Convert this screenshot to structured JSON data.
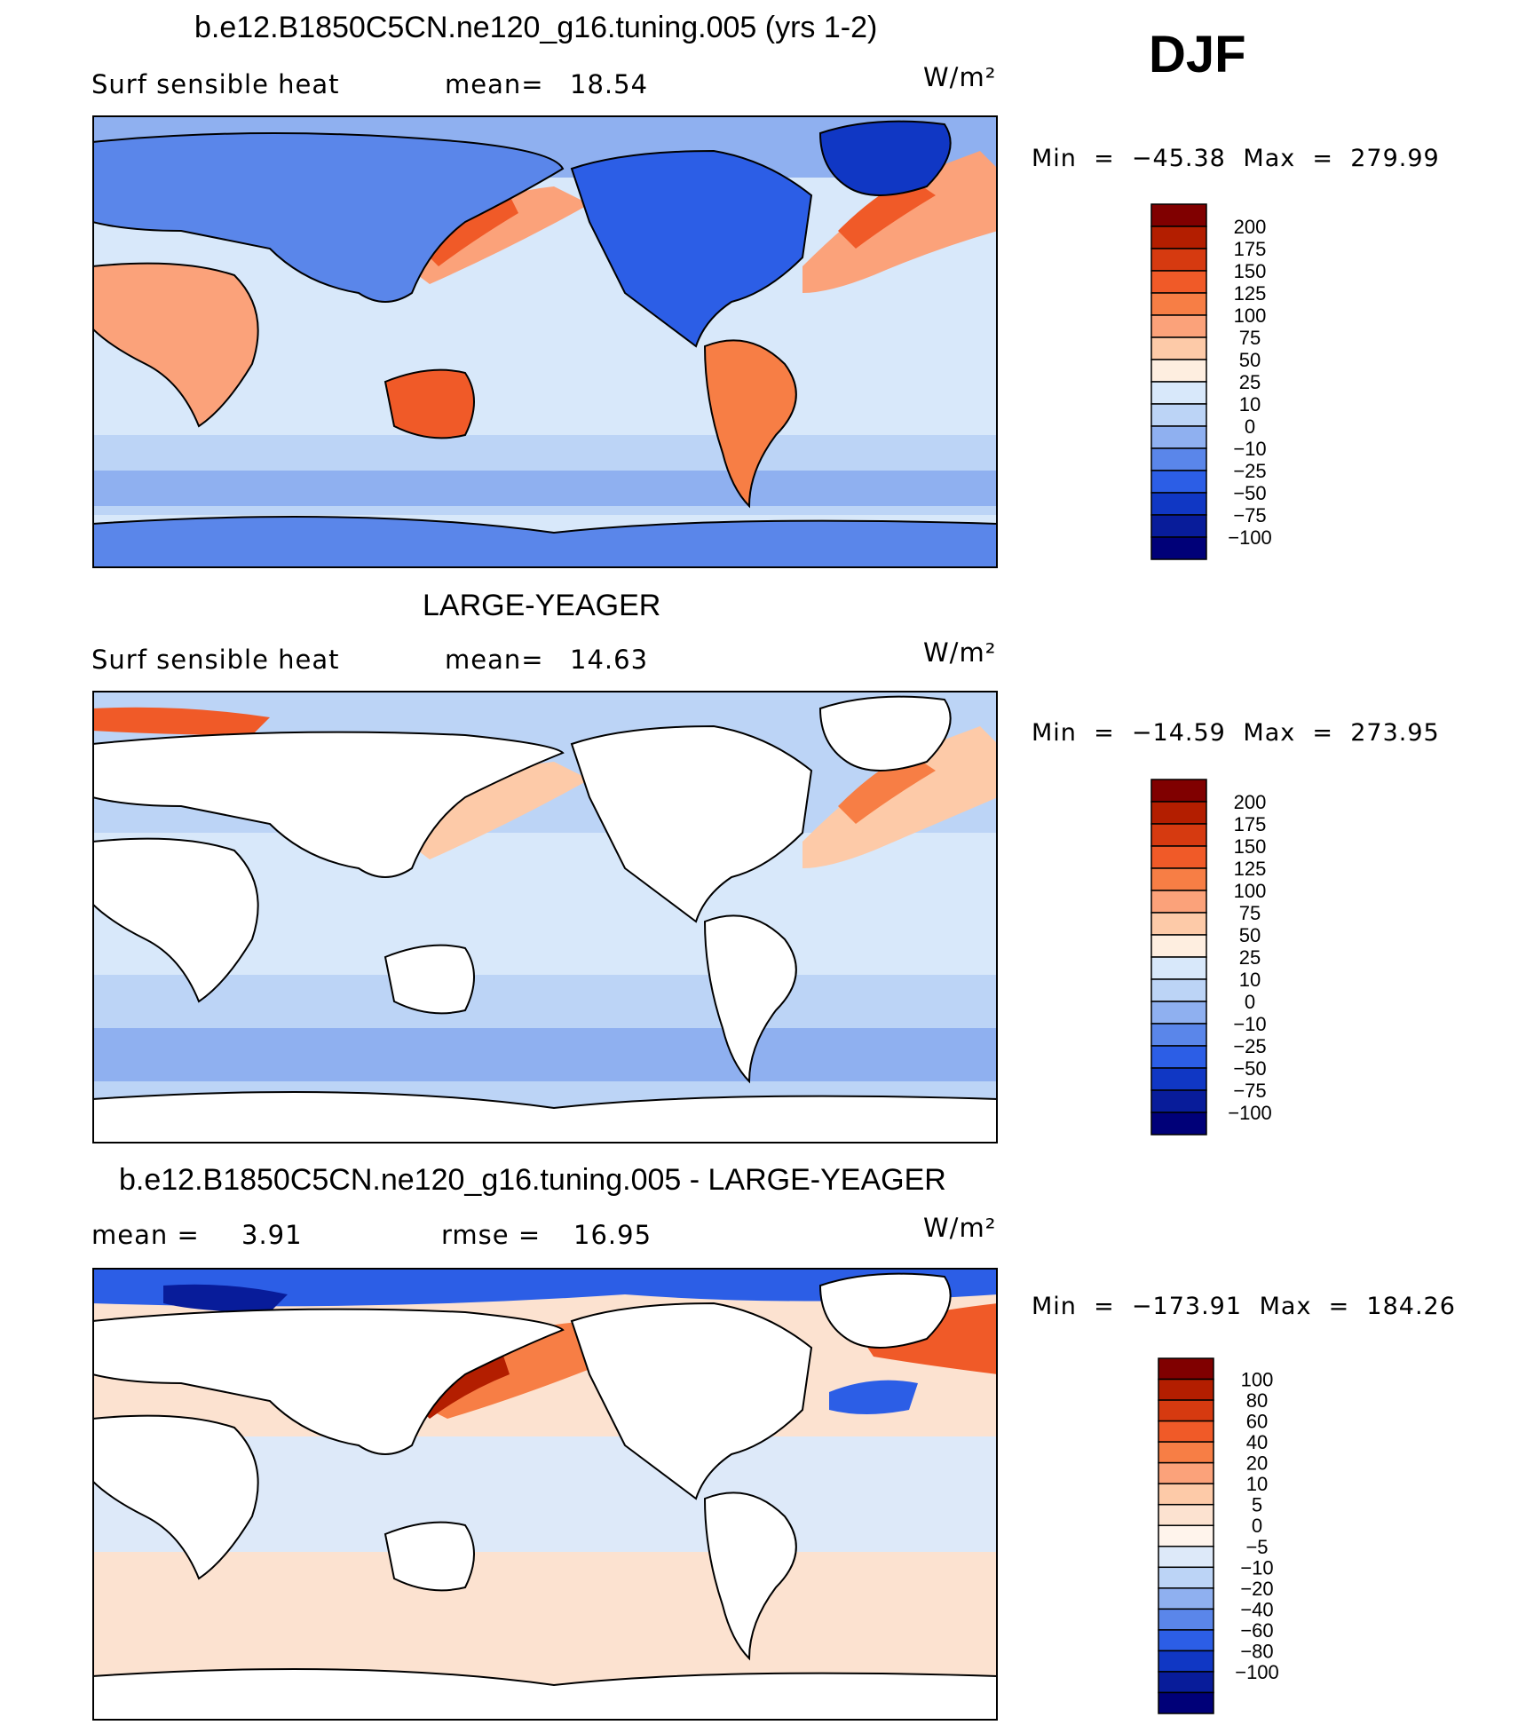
{
  "season": "DJF",
  "units": "W/m²",
  "panels": [
    {
      "title": "b.e12.B1850C5CN.ne120_g16.tuning.005 (yrs 1-2)",
      "variable": "Surf  sensible  heat",
      "stat_label": "mean=",
      "stat_value": "18.54",
      "units": "W/m²",
      "min_label": "Min",
      "min_value": "−45.38",
      "max_label": "Max",
      "max_value": "279.99",
      "levels": [
        "200",
        "175",
        "150",
        "125",
        "100",
        "75",
        "50",
        "25",
        "10",
        "0",
        "−10",
        "−25",
        "−50",
        "−75",
        "−100"
      ],
      "map_name": "model-map"
    },
    {
      "title": "LARGE-YEAGER",
      "variable": "Surf  sensible  heat",
      "stat_label": "mean=",
      "stat_value": "14.63",
      "units": "W/m²",
      "min_label": "Min",
      "min_value": "−14.59",
      "max_label": "Max",
      "max_value": "273.95",
      "levels": [
        "200",
        "175",
        "150",
        "125",
        "100",
        "75",
        "50",
        "25",
        "10",
        "0",
        "−10",
        "−25",
        "−50",
        "−75",
        "−100"
      ],
      "map_name": "obs-map"
    },
    {
      "title": "b.e12.B1850C5CN.ne120_g16.tuning.005 - LARGE-YEAGER",
      "stat_label": "mean =",
      "stat_value": "3.91",
      "rmse_label": "rmse =",
      "rmse_value": "16.95",
      "units": "W/m²",
      "min_label": "Min",
      "min_value": "−173.91",
      "max_label": "Max",
      "max_value": "184.26",
      "levels": [
        "100",
        "80",
        "60",
        "40",
        "20",
        "10",
        "5",
        "0",
        "−5",
        "−10",
        "−20",
        "−40",
        "−60",
        "−80",
        "−100"
      ],
      "map_name": "diff-map"
    }
  ],
  "colors": {
    "abs_scale": [
      "#800000",
      "#b31e00",
      "#d63a10",
      "#f05a28",
      "#f77e45",
      "#fba27a",
      "#fdcaa8",
      "#feeee0",
      "#d8e8fa",
      "#bcd4f6",
      "#8fb0f0",
      "#5a86ea",
      "#2c5ee6",
      "#1037c4",
      "#081c9a",
      "#000078"
    ],
    "diff_scale": [
      "#800000",
      "#b31e00",
      "#d63a10",
      "#f05a28",
      "#f77e45",
      "#fba27a",
      "#fdcaa8",
      "#fce2d0",
      "#fff4ec",
      "#dde9f9",
      "#bcd4f6",
      "#8fb0f0",
      "#5a86ea",
      "#2c5ee6",
      "#1037c4",
      "#081c9a",
      "#000078"
    ],
    "land_white": "#ffffff",
    "coast": "#000000"
  }
}
